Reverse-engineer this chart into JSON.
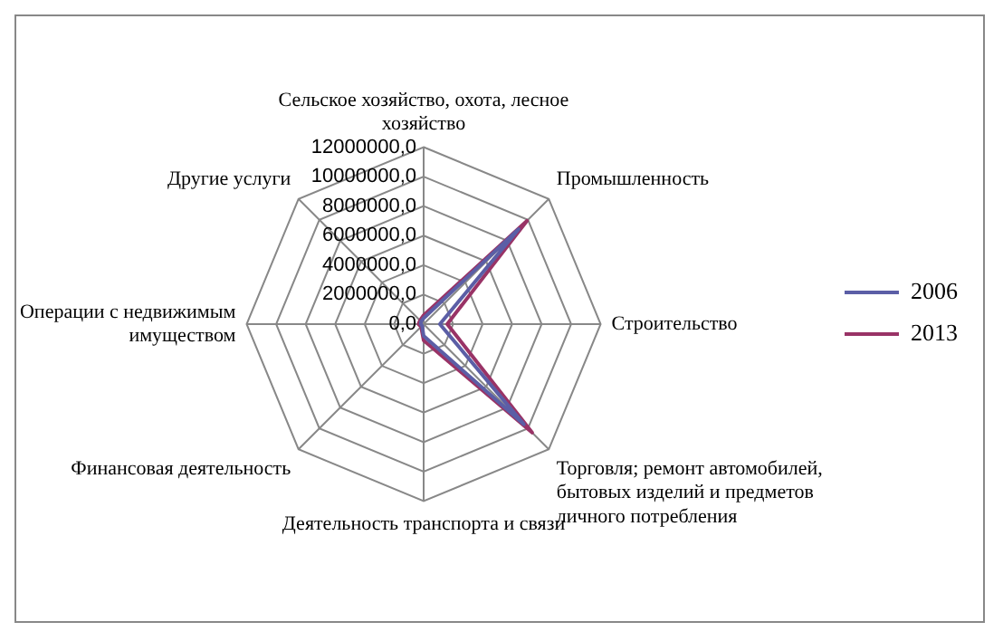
{
  "chart_data": {
    "type": "radar",
    "categories": [
      "Сельское хозяйство, охота, лесное хозяйство",
      "Промышленность",
      "Строительство",
      "Торговля; ремонт автомобилей, бытовых изделий и предметов личного потребления",
      "Деятельность транспорта и связи",
      "Финансовая деятельность",
      "Операции с недвижимым имуществом",
      "Другие услуги"
    ],
    "series": [
      {
        "name": "2006",
        "color": "#5b5ea6",
        "values": [
          400000,
          9100000,
          1100000,
          9600000,
          800000,
          150000,
          200000,
          250000
        ]
      },
      {
        "name": "2013",
        "color": "#993366",
        "values": [
          600000,
          9900000,
          1600000,
          10400000,
          1100000,
          250000,
          350000,
          350000
        ]
      }
    ],
    "ylim": [
      0,
      12000000
    ],
    "yticks": [
      {
        "value": 0,
        "label": "0,0"
      },
      {
        "value": 2000000,
        "label": "2000000,0"
      },
      {
        "value": 4000000,
        "label": "4000000,0"
      },
      {
        "value": 6000000,
        "label": "6000000,0"
      },
      {
        "value": 8000000,
        "label": "8000000,0"
      },
      {
        "value": 10000000,
        "label": "10000000,0"
      },
      {
        "value": 12000000,
        "label": "12000000,0"
      }
    ],
    "grid": true,
    "legend": "right",
    "marker": "none",
    "line_style": "solid"
  }
}
